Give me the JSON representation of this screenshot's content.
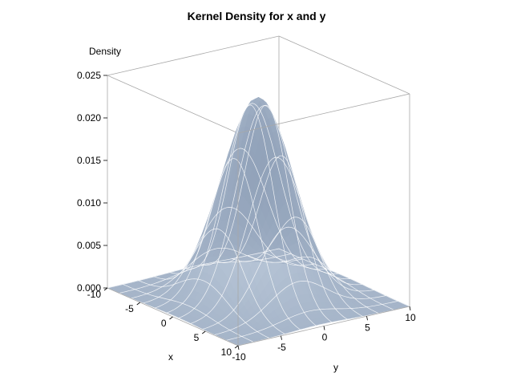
{
  "chart_data": {
    "type": "surface",
    "title": "Kernel Density for x and y",
    "xlabel": "x",
    "ylabel": "y",
    "zlabel": "Density",
    "x_range": [
      -10,
      10
    ],
    "y_range": [
      -10,
      10
    ],
    "z_range": [
      0,
      0.025
    ],
    "x_ticks": [
      "-10",
      "-5",
      "0",
      "5",
      "10"
    ],
    "y_ticks": [
      "-10",
      "-5",
      "0",
      "5",
      "10"
    ],
    "z_ticks": [
      "0.000",
      "0.005",
      "0.010",
      "0.015",
      "0.020",
      "0.025"
    ],
    "peak_density": 0.0235,
    "grid": false,
    "colors": {
      "surface_light": "#c3d0e0",
      "surface_dark": "#7f91ab",
      "mesh": "#ffffff",
      "box": "#a8a8a8"
    }
  }
}
